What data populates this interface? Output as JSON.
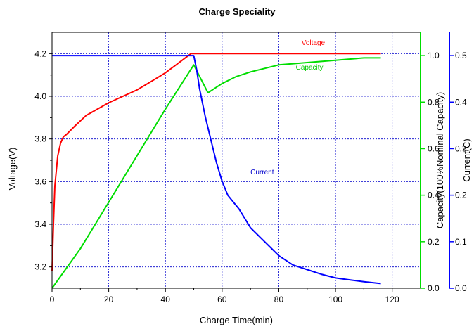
{
  "chart_data": {
    "type": "line",
    "title": "Charge Speciality",
    "xlabel": "Charge Time(min)",
    "xlim": [
      0,
      130
    ],
    "xticks": [
      "0",
      "20",
      "40",
      "60",
      "80",
      "100",
      "120"
    ],
    "axes": {
      "voltage": {
        "label": "Voltage(V)",
        "ylim": [
          3.1,
          4.3
        ],
        "ticks": [
          "3.2",
          "3.4",
          "3.6",
          "3.8",
          "4.0",
          "4.2"
        ],
        "color": "#000000"
      },
      "capacity": {
        "label": "Capacity(100%Nominal Capacity)",
        "ylim": [
          0.0,
          1.1
        ],
        "ticks": [
          "0.0",
          "0.2",
          "0.4",
          "0.6",
          "0.8",
          "1.0"
        ],
        "color": "#00cc00"
      },
      "current": {
        "label": "Current(C)",
        "ylim": [
          0.0,
          0.55
        ],
        "ticks": [
          "0.0",
          "0.1",
          "0.2",
          "0.3",
          "0.4",
          "0.5"
        ],
        "color": "#0000cc"
      }
    },
    "grid": true,
    "series": [
      {
        "name": "Voltage",
        "axis": "voltage",
        "color": "#ff0000",
        "x": [
          0,
          0.5,
          1,
          2,
          3,
          4,
          5,
          8,
          12,
          16,
          20,
          25,
          30,
          35,
          40,
          44,
          47,
          49,
          50,
          55,
          60,
          70,
          80,
          90,
          100,
          116
        ],
        "y": [
          3.18,
          3.4,
          3.58,
          3.72,
          3.78,
          3.81,
          3.82,
          3.86,
          3.91,
          3.94,
          3.97,
          4.0,
          4.03,
          4.07,
          4.11,
          4.15,
          4.18,
          4.2,
          4.2,
          4.2,
          4.2,
          4.2,
          4.2,
          4.2,
          4.2,
          4.2
        ]
      },
      {
        "name": "Capacity",
        "axis": "capacity",
        "color": "#00dd00",
        "x": [
          0,
          10,
          20,
          30,
          40,
          50,
          55,
          60,
          65,
          70,
          80,
          90,
          100,
          110,
          116
        ],
        "y": [
          0.0,
          0.17,
          0.37,
          0.57,
          0.77,
          0.96,
          0.84,
          0.88,
          0.91,
          0.93,
          0.96,
          0.97,
          0.98,
          0.99,
          0.99
        ]
      },
      {
        "name": "Current",
        "axis": "current",
        "color": "#0000ff",
        "x": [
          0,
          20,
          40,
          49,
          50,
          51,
          52,
          54,
          56,
          58,
          60,
          62,
          64,
          66,
          70,
          75,
          80,
          85,
          90,
          95,
          100,
          105,
          110,
          116
        ],
        "y": [
          0.5,
          0.5,
          0.5,
          0.5,
          0.5,
          0.47,
          0.43,
          0.37,
          0.32,
          0.27,
          0.23,
          0.2,
          0.185,
          0.17,
          0.13,
          0.1,
          0.07,
          0.05,
          0.04,
          0.03,
          0.022,
          0.018,
          0.014,
          0.01
        ]
      }
    ],
    "annotations": [
      {
        "text": "Voltage",
        "color": "#ff0000",
        "x": 88,
        "axis": "voltage",
        "y": 4.24
      },
      {
        "text": "Capacity",
        "color": "#00cc00",
        "x": 86,
        "axis": "capacity",
        "y": 0.94
      },
      {
        "text": "Current",
        "color": "#0000cc",
        "x": 70,
        "axis": "current",
        "y": 0.245
      }
    ]
  }
}
